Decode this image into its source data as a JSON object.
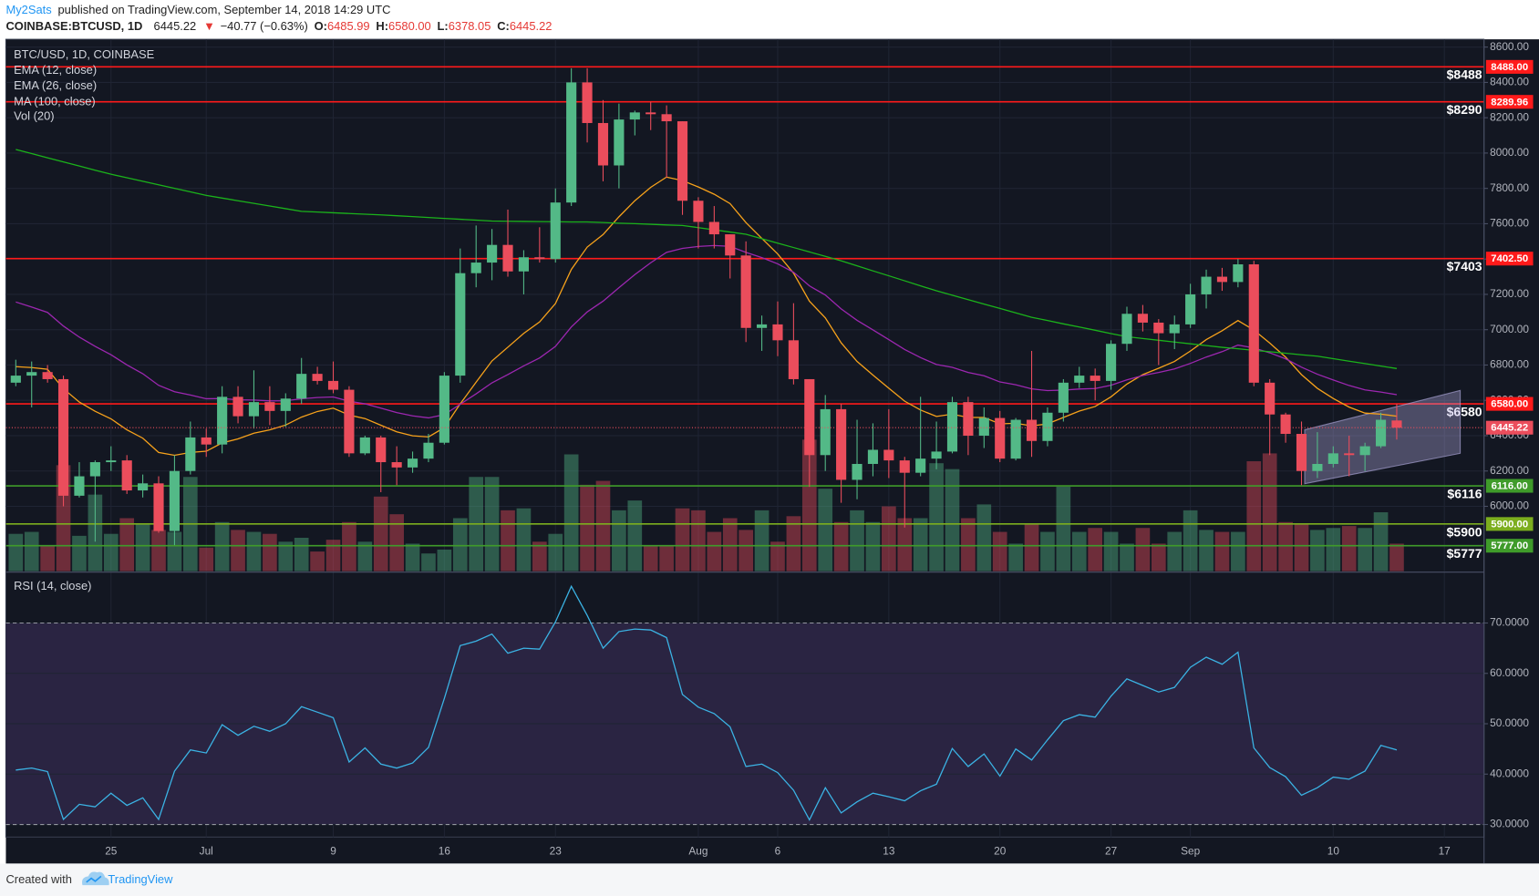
{
  "header": {
    "author": "My2Sats",
    "published": "published on TradingView.com, September 14, 2018 14:29 UTC",
    "symbol": "COINBASE:BTCUSD, 1D",
    "last": "6445.22",
    "arrow": "▼",
    "change": "−40.77 (−0.63%)",
    "ohlc": [
      {
        "label": "O:",
        "value": "6485.99"
      },
      {
        "label": "H:",
        "value": "6580.00"
      },
      {
        "label": "L:",
        "value": "6378.05"
      },
      {
        "label": "C:",
        "value": "6445.22"
      }
    ]
  },
  "footer": {
    "created": "Created with",
    "brand": "TradingView"
  },
  "chart_data": [
    {
      "type": "candlestick",
      "title": "BTC/USD, 1D, COINBASE",
      "up_color": "#53b987",
      "down_color": "#eb4d5c",
      "categories": [
        null,
        null,
        null,
        null,
        null,
        null,
        "25",
        null,
        null,
        null,
        null,
        null,
        "Jul",
        null,
        null,
        null,
        null,
        null,
        null,
        null,
        "9",
        null,
        null,
        null,
        null,
        null,
        null,
        "16",
        null,
        null,
        null,
        null,
        null,
        null,
        "23",
        null,
        null,
        null,
        null,
        null,
        null,
        null,
        null,
        "Aug",
        null,
        null,
        null,
        null,
        "6",
        null,
        null,
        null,
        null,
        null,
        null,
        "13",
        null,
        null,
        null,
        null,
        null,
        null,
        "20",
        null,
        null,
        null,
        null,
        null,
        null,
        "27",
        null,
        null,
        null,
        null,
        "Sep",
        null,
        null,
        null,
        null,
        null,
        null,
        null,
        null,
        "10",
        null,
        null,
        null,
        null,
        null,
        null,
        "17",
        null,
        null
      ],
      "open": [
        6700,
        6740,
        6760,
        6720,
        6060,
        6170,
        6250,
        6260,
        6090,
        6130,
        5860,
        6200,
        6390,
        6350,
        6620,
        6510,
        6590,
        6540,
        6610,
        6750,
        6710,
        6660,
        6300,
        6390,
        6250,
        6220,
        6270,
        6360,
        6740,
        7320,
        7380,
        7480,
        7330,
        7410,
        7400,
        7720,
        8400,
        8170,
        7930,
        8190,
        8230,
        8220,
        8180,
        7730,
        7610,
        7540,
        7420,
        7010,
        7030,
        6940,
        6720,
        6290,
        6550,
        6150,
        6240,
        6320,
        6260,
        6190,
        6270,
        6310,
        6590,
        6400,
        6500,
        6270,
        6490,
        6370,
        6530,
        6700,
        6740,
        6710,
        6920,
        7090,
        7040,
        6980,
        7030,
        7200,
        7300,
        7270,
        7370,
        6700,
        6520,
        6410,
        6200,
        6240,
        6300,
        6290,
        6340,
        6485.99,
        null,
        null,
        null,
        null,
        null
      ],
      "high": [
        6830,
        6820,
        6800,
        6740,
        6250,
        6260,
        6340,
        6290,
        6180,
        6170,
        6290,
        6480,
        6440,
        6680,
        6680,
        6770,
        6680,
        6640,
        6840,
        6790,
        6820,
        6680,
        6400,
        6400,
        6340,
        6310,
        6410,
        6760,
        7460,
        7590,
        7570,
        7680,
        7450,
        7580,
        7800,
        8480,
        8480,
        8300,
        8280,
        8240,
        8290,
        8270,
        8180,
        7750,
        7700,
        7540,
        7500,
        7080,
        7160,
        7150,
        6720,
        6630,
        6580,
        6490,
        6470,
        6550,
        6280,
        6620,
        6480,
        6620,
        6620,
        6560,
        6540,
        6500,
        6880,
        6560,
        6720,
        6790,
        6780,
        6940,
        7130,
        7140,
        7060,
        7080,
        7260,
        7340,
        7350,
        7400,
        7390,
        6720,
        6530,
        6480,
        6420,
        6340,
        6400,
        6360,
        6530,
        6580,
        null,
        null,
        null,
        null,
        null
      ],
      "low": [
        6680,
        6560,
        6700,
        6000,
        6050,
        5800,
        6200,
        6070,
        6050,
        5850,
        5780,
        6180,
        6280,
        6300,
        6470,
        6440,
        6460,
        6450,
        6580,
        6690,
        6640,
        6280,
        6290,
        6080,
        6120,
        6190,
        6250,
        6350,
        6700,
        7240,
        7280,
        7300,
        7200,
        7380,
        7380,
        7700,
        8060,
        7840,
        7800,
        8100,
        8130,
        7860,
        7650,
        7460,
        7460,
        7290,
        6930,
        6880,
        6850,
        6690,
        6110,
        6200,
        6020,
        6040,
        6170,
        6160,
        5880,
        6170,
        6210,
        6300,
        6290,
        6330,
        6250,
        6260,
        6280,
        6340,
        6480,
        6670,
        6600,
        6660,
        6880,
        6990,
        6800,
        6890,
        7010,
        7120,
        7220,
        7240,
        6680,
        6290,
        6360,
        6120,
        6160,
        6220,
        6170,
        6200,
        6330,
        6378.05,
        null,
        null,
        null,
        null,
        null
      ],
      "close": [
        6740,
        6760,
        6720,
        6060,
        6170,
        6250,
        6260,
        6090,
        6130,
        5860,
        6200,
        6390,
        6350,
        6620,
        6510,
        6590,
        6540,
        6610,
        6750,
        6710,
        6660,
        6300,
        6390,
        6250,
        6220,
        6270,
        6360,
        6740,
        7320,
        7380,
        7480,
        7330,
        7410,
        7400,
        7720,
        8400,
        8170,
        7930,
        8190,
        8230,
        8220,
        8180,
        7730,
        7610,
        7540,
        7420,
        7010,
        7030,
        6940,
        6720,
        6290,
        6550,
        6150,
        6240,
        6320,
        6260,
        6190,
        6270,
        6310,
        6590,
        6400,
        6500,
        6270,
        6490,
        6370,
        6530,
        6700,
        6740,
        6710,
        6920,
        7090,
        7040,
        6980,
        7030,
        7200,
        7300,
        7270,
        7370,
        6700,
        6520,
        6410,
        6200,
        6240,
        6300,
        6290,
        6340,
        6490,
        6445.22,
        null,
        null,
        null,
        null,
        null
      ],
      "volume": {
        "name": "Vol (20)",
        "vlim": [
          0,
          542
        ],
        "values": [
          38,
          40,
          26,
          108,
          36,
          78,
          38,
          54,
          48,
          42,
          40,
          96,
          24,
          50,
          42,
          40,
          38,
          30,
          34,
          20,
          32,
          50,
          30,
          76,
          58,
          28,
          18,
          22,
          54,
          96,
          96,
          62,
          64,
          30,
          38,
          119,
          88,
          92,
          62,
          72,
          26,
          26,
          64,
          62,
          40,
          54,
          42,
          62,
          30,
          56,
          134,
          84,
          50,
          62,
          50,
          66,
          54,
          54,
          110,
          104,
          54,
          68,
          40,
          28,
          48,
          40,
          86,
          40,
          44,
          40,
          28,
          44,
          28,
          40,
          62,
          42,
          40,
          40,
          112,
          120,
          50,
          48,
          42,
          44,
          46,
          44,
          60,
          28,
          null,
          null,
          null,
          null,
          null
        ]
      },
      "series": [
        {
          "name": "EMA (12, close)",
          "color": "#f7a21b",
          "values": [
            6791,
            6786,
            6776,
            6666,
            6590,
            6538,
            6495,
            6433,
            6386,
            6305,
            6289,
            6305,
            6312,
            6359,
            6382,
            6414,
            6433,
            6460,
            6505,
            6537,
            6556,
            6517,
            6497,
            6459,
            6422,
            6399,
            6393,
            6446,
            6580,
            6703,
            6823,
            6901,
            6979,
            7044,
            7148,
            7341,
            7468,
            7539,
            7639,
            7730,
            7806,
            7864,
            7844,
            7808,
            7767,
            7714,
            7606,
            7517,
            7429,
            7320,
            7161,
            7067,
            6926,
            6820,
            6743,
            6669,
            6595,
            6545,
            6509,
            6522,
            6503,
            6503,
            6467,
            6470,
            6455,
            6467,
            6503,
            6539,
            6565,
            6620,
            6692,
            6746,
            6782,
            6820,
            6879,
            6944,
            6994,
            7052,
            6998,
            6924,
            6845,
            6746,
            6668,
            6611,
            6562,
            6528,
            6522,
            6510,
            null,
            null,
            null,
            null,
            null
          ]
        },
        {
          "name": "EMA (26, close)",
          "color": "#9c27b0",
          "values": [
            7157,
            7128,
            7098,
            7021,
            6958,
            6906,
            6858,
            6801,
            6751,
            6685,
            6649,
            6630,
            6609,
            6610,
            6603,
            6602,
            6597,
            6598,
            6609,
            6616,
            6619,
            6595,
            6580,
            6556,
            6531,
            6512,
            6501,
            6519,
            6578,
            6637,
            6699,
            6746,
            6795,
            6840,
            6905,
            7016,
            7101,
            7162,
            7238,
            7312,
            7379,
            7438,
            7460,
            7471,
            7476,
            7472,
            7438,
            7408,
            7373,
            7325,
            7248,
            7196,
            7118,
            7053,
            6999,
            6944,
            6888,
            6842,
            6803,
            6787,
            6758,
            6739,
            6704,
            6688,
            6665,
            6655,
            6658,
            6664,
            6667,
            6686,
            6716,
            6740,
            6758,
            6778,
            6809,
            6845,
            6876,
            6913,
            6897,
            6869,
            6835,
            6788,
            6748,
            6715,
            6684,
            6659,
            6647,
            6632,
            null,
            null,
            null,
            null,
            null
          ]
        },
        {
          "name": "MA (100, close)",
          "color": "#1bb31b",
          "values": [
            8020,
            7997,
            7973,
            7950,
            7927,
            7903,
            7880,
            7860,
            7840,
            7820,
            7800,
            7780,
            7760,
            7745,
            7730,
            7715,
            7700,
            7685,
            7670,
            7666,
            7662,
            7658,
            7654,
            7650,
            7645,
            7640,
            7635,
            7630,
            7625,
            7620,
            7615,
            7614,
            7613,
            7612,
            7611,
            7610,
            7610,
            7607,
            7603,
            7600,
            7597,
            7593,
            7590,
            7578,
            7565,
            7553,
            7540,
            7515,
            7490,
            7465,
            7440,
            7415,
            7390,
            7362,
            7333,
            7305,
            7277,
            7248,
            7220,
            7195,
            7170,
            7145,
            7120,
            7095,
            7070,
            7052,
            7033,
            7015,
            6997,
            6978,
            6960,
            6950,
            6940,
            6930,
            6920,
            6910,
            6900,
            6892,
            6883,
            6875,
            6867,
            6858,
            6850,
            6836,
            6822,
            6808,
            6794,
            6780,
            null,
            null,
            null,
            null,
            null
          ]
        }
      ],
      "levels": [
        {
          "value": 8488,
          "label": "8488.00",
          "note": "$8488",
          "color": "#ff1a1a"
        },
        {
          "value": 8289.96,
          "label": "8289.96",
          "note": "$8290",
          "color": "#ff1a1a"
        },
        {
          "value": 7402.5,
          "label": "7402.50",
          "note": "$7403",
          "color": "#ff1a1a"
        },
        {
          "value": 6580,
          "label": "6580.00",
          "note": "$6580",
          "color": "#ff1a1a"
        },
        {
          "value": 6116,
          "label": "6116.00",
          "note": "$6116",
          "color": "#3f9b2a"
        },
        {
          "value": 5900,
          "label": "5900.00",
          "note": "$5900",
          "color": "#7cae1e"
        },
        {
          "value": 5777,
          "label": "5777.00",
          "note": "$5777",
          "color": "#3f9b2a"
        }
      ],
      "channel": {
        "upper": [
          6433,
          6656
        ],
        "lower": [
          6128,
          6300
        ],
        "color": "#b7b0e6"
      },
      "ylim": [
        5633,
        8644
      ],
      "yticks": [
        {
          "value": 8600,
          "label": "8600.00"
        },
        {
          "value": 8400,
          "label": "8400.00"
        },
        {
          "value": 8200,
          "label": "8200.00"
        },
        {
          "value": 8000,
          "label": "8000.00"
        },
        {
          "value": 7800,
          "label": "7800.00"
        },
        {
          "value": 7600,
          "label": "7600.00"
        },
        {
          "value": 7400,
          "label": "7400.00"
        },
        {
          "value": 7200,
          "label": "7200.00"
        },
        {
          "value": 7000,
          "label": "7000.00"
        },
        {
          "value": 6800,
          "label": "6800.00"
        },
        {
          "value": 6600,
          "label": "6600.00"
        },
        {
          "value": 6400,
          "label": "6400.00"
        },
        {
          "value": 6200,
          "label": "6200.00"
        },
        {
          "value": 6000,
          "label": "6000.00"
        }
      ],
      "grid": true
    },
    {
      "type": "line",
      "title": "RSI (14, close)",
      "color": "#3bb3e4",
      "values": [
        40.8,
        41.2,
        40.5,
        31,
        34,
        33.5,
        36.2,
        33.8,
        35.3,
        31,
        40.6,
        44.8,
        44.2,
        49.8,
        47.7,
        49.5,
        48.5,
        50,
        53.4,
        52.3,
        51.2,
        42.4,
        45.2,
        42,
        41.2,
        42.2,
        45.3,
        55,
        65.5,
        66.4,
        67.8,
        64,
        65,
        64.8,
        70.2,
        77.3,
        71.5,
        65,
        68.3,
        68.8,
        68.6,
        67.1,
        55.8,
        53.3,
        52,
        49.4,
        41.5,
        42,
        40.3,
        36.8,
        30.9,
        37.3,
        32.3,
        34.5,
        36.2,
        35.5,
        34.7,
        36.7,
        38,
        45.1,
        41.5,
        44,
        39.6,
        45,
        42.8,
        46.8,
        50.6,
        51.8,
        51.3,
        55.5,
        58.9,
        57.6,
        56.3,
        57.2,
        61.2,
        63.2,
        61.8,
        64.2,
        45.2,
        41.3,
        39.5,
        35.8,
        37.3,
        39.4,
        39,
        40.6,
        45.7,
        44.8,
        null,
        null,
        null,
        null,
        null
      ],
      "band": [
        30,
        70
      ],
      "band_color": "#2a2442",
      "ylim": [
        27.5,
        80.1
      ],
      "yticks": [
        {
          "value": 70,
          "label": "70.0000"
        },
        {
          "value": 60,
          "label": "60.0000"
        },
        {
          "value": 50,
          "label": "50.0000"
        },
        {
          "value": 40,
          "label": "40.0000"
        },
        {
          "value": 30,
          "label": "30.0000"
        }
      ]
    }
  ]
}
